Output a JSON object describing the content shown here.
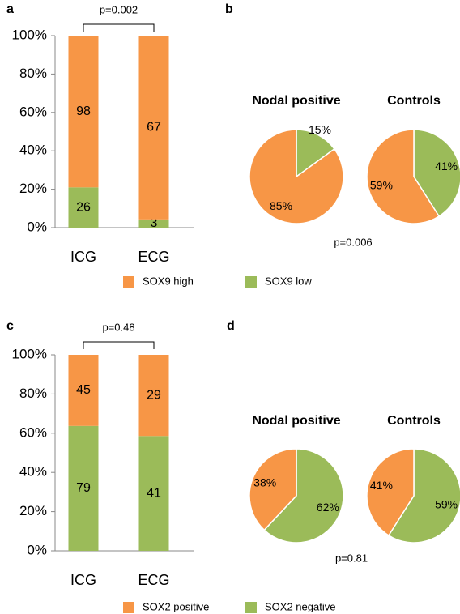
{
  "chart_data": [
    {
      "type": "bar",
      "stacking": "percent",
      "panel": "a",
      "annotation": "p=0.002",
      "categories": [
        "ICG",
        "ECG"
      ],
      "series": [
        {
          "name": "SOX9 high",
          "color": "#f79646",
          "values": [
            98,
            67
          ]
        },
        {
          "name": "SOX9 low",
          "color": "#9bbb59",
          "values": [
            26,
            3
          ]
        }
      ],
      "ylim": [
        0,
        100
      ],
      "yticks": [
        {
          "value": 0,
          "label": "0%"
        },
        {
          "value": 20,
          "label": "20%"
        },
        {
          "value": 40,
          "label": "40%"
        },
        {
          "value": 60,
          "label": "60%"
        },
        {
          "value": 80,
          "label": "80%"
        },
        {
          "value": 100,
          "label": "100%"
        }
      ]
    },
    {
      "type": "pie",
      "panel": "b",
      "annotation": "p=0.006",
      "pies": [
        {
          "title": "Nodal positive",
          "values": [
            15,
            85
          ],
          "value_labels": [
            "15%",
            "85%"
          ],
          "colors": [
            "#9bbb59",
            "#f79646"
          ]
        },
        {
          "title": "Controls",
          "values": [
            41,
            59
          ],
          "value_labels": [
            "41%",
            "59%"
          ],
          "colors": [
            "#9bbb59",
            "#f79646"
          ]
        }
      ]
    },
    {
      "type": "bar",
      "stacking": "percent",
      "panel": "c",
      "annotation": "p=0.48",
      "categories": [
        "ICG",
        "ECG"
      ],
      "series": [
        {
          "name": "SOX2 positive",
          "color": "#f79646",
          "values": [
            45,
            29
          ]
        },
        {
          "name": "SOX2 negative",
          "color": "#9bbb59",
          "values": [
            79,
            41
          ]
        }
      ],
      "ylim": [
        0,
        100
      ],
      "yticks": [
        {
          "value": 0,
          "label": "0%"
        },
        {
          "value": 20,
          "label": "20%"
        },
        {
          "value": 40,
          "label": "40%"
        },
        {
          "value": 60,
          "label": "60%"
        },
        {
          "value": 80,
          "label": "80%"
        },
        {
          "value": 100,
          "label": "100%"
        }
      ]
    },
    {
      "type": "pie",
      "panel": "d",
      "annotation": "p=0.81",
      "pies": [
        {
          "title": "Nodal positive",
          "values": [
            62,
            38
          ],
          "value_labels": [
            "62%",
            "38%"
          ],
          "colors": [
            "#9bbb59",
            "#f79646"
          ]
        },
        {
          "title": "Controls",
          "values": [
            59,
            41
          ],
          "value_labels": [
            "59%",
            "41%"
          ],
          "colors": [
            "#9bbb59",
            "#f79646"
          ]
        }
      ]
    }
  ]
}
